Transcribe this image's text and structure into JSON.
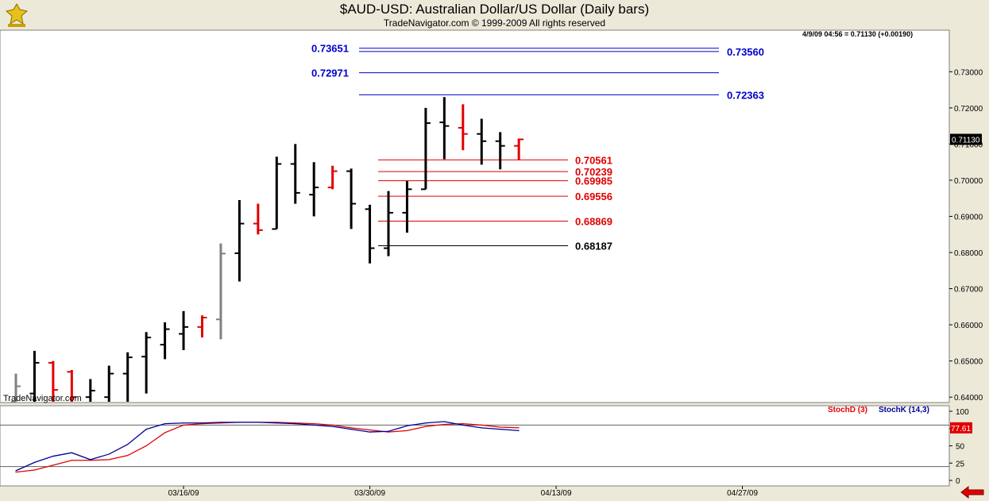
{
  "window": {
    "title": "$AUD-USD:  Australian Dollar/US Dollar  (Daily bars)",
    "subtitle": "TradeNavigator.com © 1999-2009 All rights reserved",
    "watermark": "TradeNavigator.com",
    "quote": "4/9/09 04:56 = 0.71130 (+0.00190)"
  },
  "colors": {
    "background": "#ece9d8",
    "plot": "#ffffff",
    "up_bar": "#000000",
    "down_bar": "#e00000",
    "neutral_bar": "#808080",
    "blue_level": "#0000cc",
    "red_level": "#e00000",
    "stochD": "#e00000",
    "stochK": "#000099"
  },
  "chart_data": [
    {
      "type": "ohlc",
      "title": "$AUD-USD:  Australian Dollar/US Dollar  (Daily bars)",
      "ylim": [
        0.6385,
        0.7415
      ],
      "y_ticks": [
        "0.64000",
        "0.65000",
        "0.66000",
        "0.67000",
        "0.68000",
        "0.69000",
        "0.70000",
        "0.71000",
        "0.72000",
        "0.73000"
      ],
      "x_tick_labels": [
        {
          "index": 9,
          "label": "03/16/09"
        },
        {
          "index": 19,
          "label": "03/30/09"
        },
        {
          "index": 29,
          "label": "04/13/09"
        },
        {
          "index": 39,
          "label": "04/27/09"
        }
      ],
      "last_price": "0.71130",
      "bars": [
        {
          "o": 0.6385,
          "h": 0.6465,
          "l": 0.6385,
          "c": 0.643,
          "color": "gray"
        },
        {
          "o": 0.641,
          "h": 0.6528,
          "l": 0.6385,
          "c": 0.6495,
          "color": "black"
        },
        {
          "o": 0.6495,
          "h": 0.65,
          "l": 0.6385,
          "c": 0.642,
          "color": "red"
        },
        {
          "o": 0.647,
          "h": 0.6475,
          "l": 0.6385,
          "c": 0.64,
          "color": "red"
        },
        {
          "o": 0.64,
          "h": 0.645,
          "l": 0.6385,
          "c": 0.6418,
          "color": "black"
        },
        {
          "o": 0.64,
          "h": 0.6487,
          "l": 0.6385,
          "c": 0.6465,
          "color": "black"
        },
        {
          "o": 0.6465,
          "h": 0.6524,
          "l": 0.6385,
          "c": 0.651,
          "color": "black"
        },
        {
          "o": 0.6512,
          "h": 0.658,
          "l": 0.641,
          "c": 0.6565,
          "color": "black"
        },
        {
          "o": 0.6545,
          "h": 0.6607,
          "l": 0.6505,
          "c": 0.6588,
          "color": "black"
        },
        {
          "o": 0.6575,
          "h": 0.6638,
          "l": 0.653,
          "c": 0.6594,
          "color": "black"
        },
        {
          "o": 0.6594,
          "h": 0.6626,
          "l": 0.6565,
          "c": 0.662,
          "color": "red"
        },
        {
          "o": 0.6615,
          "h": 0.6825,
          "l": 0.656,
          "c": 0.6797,
          "color": "gray"
        },
        {
          "o": 0.6798,
          "h": 0.6945,
          "l": 0.672,
          "c": 0.688,
          "color": "black"
        },
        {
          "o": 0.688,
          "h": 0.6935,
          "l": 0.685,
          "c": 0.6862,
          "color": "red"
        },
        {
          "o": 0.6865,
          "h": 0.7065,
          "l": 0.6865,
          "c": 0.7045,
          "color": "black"
        },
        {
          "o": 0.7045,
          "h": 0.71,
          "l": 0.6935,
          "c": 0.6965,
          "color": "black"
        },
        {
          "o": 0.696,
          "h": 0.705,
          "l": 0.69,
          "c": 0.698,
          "color": "black"
        },
        {
          "o": 0.698,
          "h": 0.704,
          "l": 0.6975,
          "c": 0.7025,
          "color": "red"
        },
        {
          "o": 0.7025,
          "h": 0.7032,
          "l": 0.6865,
          "c": 0.6935,
          "color": "black"
        },
        {
          "o": 0.692,
          "h": 0.6932,
          "l": 0.677,
          "c": 0.6812,
          "color": "black"
        },
        {
          "o": 0.6812,
          "h": 0.697,
          "l": 0.679,
          "c": 0.691,
          "color": "black"
        },
        {
          "o": 0.691,
          "h": 0.6998,
          "l": 0.6855,
          "c": 0.6975,
          "color": "black"
        },
        {
          "o": 0.6975,
          "h": 0.72,
          "l": 0.6975,
          "c": 0.7158,
          "color": "black"
        },
        {
          "o": 0.716,
          "h": 0.723,
          "l": 0.7058,
          "c": 0.715,
          "color": "black"
        },
        {
          "o": 0.7145,
          "h": 0.721,
          "l": 0.7083,
          "c": 0.7128,
          "color": "red"
        },
        {
          "o": 0.7128,
          "h": 0.717,
          "l": 0.7043,
          "c": 0.7108,
          "color": "black"
        },
        {
          "o": 0.7108,
          "h": 0.7133,
          "l": 0.703,
          "c": 0.7095,
          "color": "black"
        },
        {
          "o": 0.7095,
          "h": 0.7115,
          "l": 0.7055,
          "c": 0.7113,
          "color": "red"
        }
      ],
      "levels": [
        {
          "value": 0.73651,
          "label": "0.73651",
          "color": "blue",
          "label_side": "left"
        },
        {
          "value": 0.7356,
          "label": "0.73560",
          "color": "blue",
          "label_side": "right"
        },
        {
          "value": 0.72971,
          "label": "0.72971",
          "color": "blue",
          "label_side": "left"
        },
        {
          "value": 0.72363,
          "label": "0.72363",
          "color": "blue",
          "label_side": "right"
        },
        {
          "value": 0.70561,
          "label": "0.70561",
          "color": "red",
          "label_side": "right"
        },
        {
          "value": 0.70239,
          "label": "0.70239",
          "color": "red",
          "label_side": "right"
        },
        {
          "value": 0.69985,
          "label": "0.69985",
          "color": "red",
          "label_side": "right"
        },
        {
          "value": 0.69556,
          "label": "0.69556",
          "color": "red",
          "label_side": "right"
        },
        {
          "value": 0.68869,
          "label": "0.68869",
          "color": "red",
          "label_side": "right"
        },
        {
          "value": 0.68187,
          "label": "0.68187",
          "color": "black",
          "label_side": "right"
        }
      ]
    },
    {
      "type": "line",
      "ylim": [
        -8,
        108
      ],
      "y_ticks": [
        "100",
        "75",
        "50",
        "25",
        "0"
      ],
      "reference_lines": [
        80,
        20
      ],
      "series": [
        {
          "name": "StochD (3)",
          "color": "red",
          "last_label": "77.61",
          "values": [
            12,
            15,
            22,
            29,
            29,
            30,
            36,
            50,
            69,
            80,
            82,
            83,
            84,
            84,
            84,
            83,
            82,
            80,
            76,
            73,
            70,
            72,
            78,
            81,
            82,
            80,
            77,
            76
          ]
        },
        {
          "name": "StochK (14,3)",
          "color": "blue",
          "values": [
            14,
            26,
            35,
            40,
            30,
            38,
            52,
            74,
            82,
            83,
            83,
            84,
            84,
            84,
            83,
            82,
            80,
            78,
            74,
            70,
            71,
            79,
            83,
            85,
            80,
            76,
            74,
            72
          ]
        }
      ]
    }
  ]
}
